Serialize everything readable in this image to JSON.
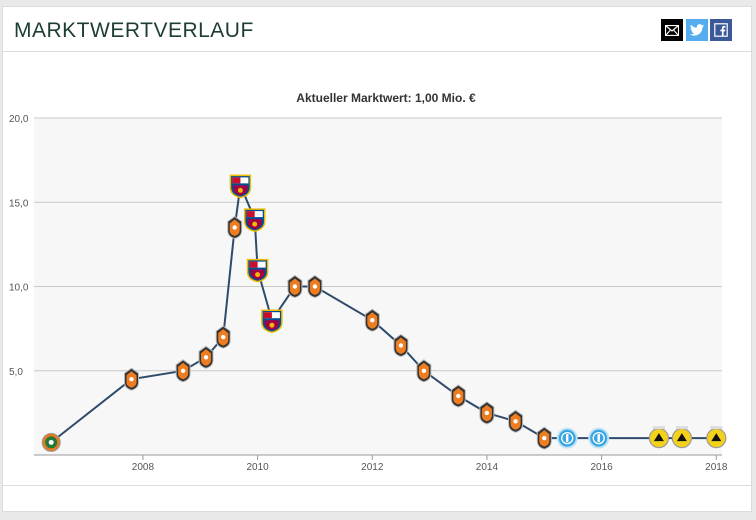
{
  "widget": {
    "title": "MARKTWERTVERLAUF"
  },
  "share": {
    "icons": [
      "mail-icon",
      "twitter-icon",
      "facebook-icon"
    ]
  },
  "colors": {
    "line": "#2f4b6b",
    "grid": "#c8c8c8",
    "plot_background": "#f7f7f7",
    "twitter": "#55acee",
    "facebook": "#3b5998"
  },
  "chart_data": {
    "type": "line",
    "title": "Aktueller Marktwert: 1,00 Mio. €",
    "xlabel": "",
    "ylabel": "",
    "xlim": [
      2006.1,
      2018.1
    ],
    "ylim": [
      0,
      20
    ],
    "x_ticks": [
      "2008",
      "2010",
      "2012",
      "2014",
      "2016",
      "2018"
    ],
    "y_ticks": [
      "5,0",
      "10,0",
      "15,0",
      "20,0"
    ],
    "grid": true,
    "legend": "none",
    "series": [
      {
        "points": [
          {
            "x": 2006.4,
            "y": 0.75,
            "club": "club-crest-green"
          },
          {
            "x": 2007.8,
            "y": 4.5,
            "club": "club-crest-orange"
          },
          {
            "x": 2008.7,
            "y": 5.0,
            "club": "club-crest-orange"
          },
          {
            "x": 2009.1,
            "y": 5.8,
            "club": "club-crest-orange"
          },
          {
            "x": 2009.4,
            "y": 7.0,
            "club": "club-crest-orange"
          },
          {
            "x": 2009.6,
            "y": 13.5,
            "club": "club-crest-orange"
          },
          {
            "x": 2009.7,
            "y": 16.0,
            "club": "club-crest-barcelona"
          },
          {
            "x": 2009.95,
            "y": 14.0,
            "club": "club-crest-barcelona"
          },
          {
            "x": 2010.0,
            "y": 11.0,
            "club": "club-crest-barcelona"
          },
          {
            "x": 2010.25,
            "y": 8.0,
            "club": "club-crest-barcelona"
          },
          {
            "x": 2010.65,
            "y": 10.0,
            "club": "club-crest-orange"
          },
          {
            "x": 2011.0,
            "y": 10.0,
            "club": "club-crest-orange"
          },
          {
            "x": 2012.0,
            "y": 8.0,
            "club": "club-crest-orange"
          },
          {
            "x": 2012.5,
            "y": 6.5,
            "club": "club-crest-orange"
          },
          {
            "x": 2012.9,
            "y": 5.0,
            "club": "club-crest-orange"
          },
          {
            "x": 2013.5,
            "y": 3.5,
            "club": "club-crest-orange"
          },
          {
            "x": 2014.0,
            "y": 2.5,
            "club": "club-crest-orange"
          },
          {
            "x": 2014.5,
            "y": 2.0,
            "club": "club-crest-orange"
          },
          {
            "x": 2015.0,
            "y": 1.0,
            "club": "club-crest-orange"
          },
          {
            "x": 2015.4,
            "y": 1.0,
            "club": "club-crest-lightblue"
          },
          {
            "x": 2015.95,
            "y": 1.0,
            "club": "club-crest-lightblue"
          },
          {
            "x": 2017.0,
            "y": 1.0,
            "club": "club-crest-yellow"
          },
          {
            "x": 2017.4,
            "y": 1.0,
            "club": "club-crest-yellow"
          },
          {
            "x": 2018.0,
            "y": 1.0,
            "club": "club-crest-yellow"
          }
        ]
      }
    ]
  }
}
